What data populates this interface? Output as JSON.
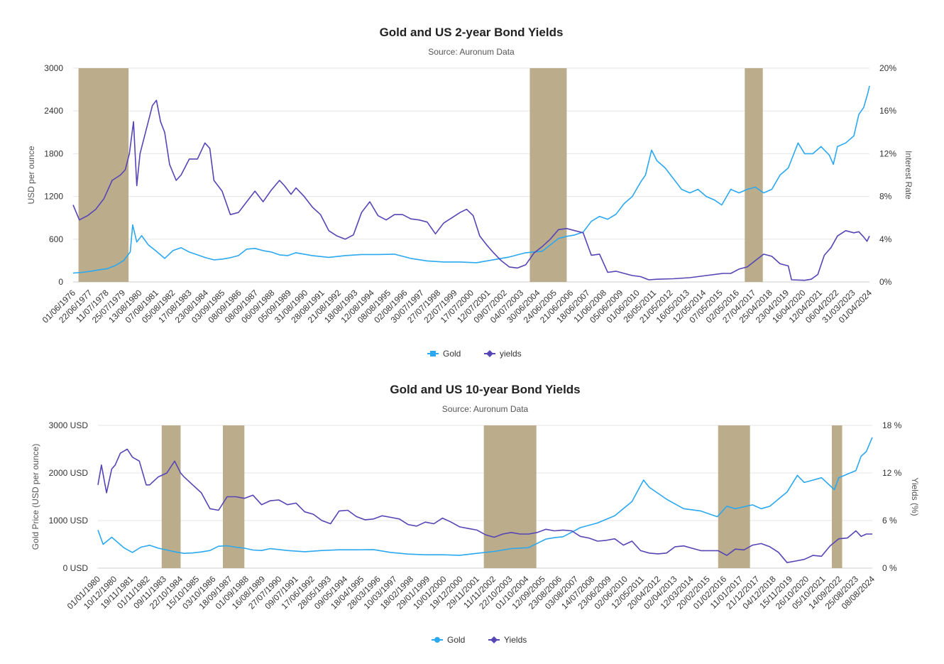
{
  "colors": {
    "gold": "#2aa8f0",
    "yields": "#5545b5",
    "band": "#bbad8c",
    "grid": "#e6e6e6"
  },
  "chart_data": [
    {
      "type": "line",
      "title": "Gold and US 2-year Bond Yields",
      "subtitle": "Source: Auronum Data",
      "ylabel": "USD per ounce",
      "y2label": "Interest Rate",
      "ylim": [
        0,
        3000
      ],
      "y2lim": [
        0,
        20
      ],
      "yticks": [
        "0",
        "600",
        "1200",
        "1800",
        "2400",
        "3000"
      ],
      "y2ticks": [
        "0%",
        "4%",
        "8%",
        "12%",
        "16%",
        "20%"
      ],
      "xrange": [
        1976.42,
        2024.95
      ],
      "xticks": [
        "01/06/1976",
        "22/06/1977",
        "11/07/1978",
        "25/07/1979",
        "13/08/1980",
        "07/08/1981",
        "05/08/1982",
        "17/08/1983",
        "23/08/1984",
        "03/09/1985",
        "08/09/1986",
        "08/09/1987",
        "06/09/1988",
        "05/09/1989",
        "31/08/1990",
        "28/08/1991",
        "21/08/1992",
        "18/08/1993",
        "12/08/1994",
        "08/08/1995",
        "02/08/1996",
        "30/07/1997",
        "27/07/1998",
        "22/07/1999",
        "17/07/2000",
        "12/07/2001",
        "09/07/2002",
        "04/07/2003",
        "30/06/2004",
        "24/06/2005",
        "21/06/2006",
        "18/06/2007",
        "11/06/2008",
        "05/06/2009",
        "01/06/2010",
        "26/05/2011",
        "21/05/2012",
        "16/05/2013",
        "12/05/2014",
        "07/05/2015",
        "02/05/2016",
        "27/04/2017",
        "25/04/2018",
        "23/04/2019",
        "16/04/2020",
        "12/04/2021",
        "06/04/2022",
        "31/03/2023",
        "01/04/2024"
      ],
      "bands": [
        [
          1976.75,
          1979.8
        ],
        [
          2004.25,
          2006.5
        ],
        [
          2017.35,
          2018.45
        ]
      ],
      "legend": [
        "Gold",
        "yields"
      ],
      "series": [
        {
          "name": "Gold",
          "axis": "left",
          "x": [
            1976.42,
            1977,
            1977.5,
            1978,
            1978.5,
            1979,
            1979.5,
            1979.9,
            1980.05,
            1980.3,
            1980.6,
            1981,
            1981.5,
            1982,
            1982.5,
            1983,
            1983.5,
            1984,
            1984.5,
            1985,
            1985.5,
            1986,
            1986.5,
            1987,
            1987.5,
            1988,
            1988.5,
            1989,
            1989.5,
            1990,
            1991,
            1992,
            1993,
            1994,
            1995,
            1996,
            1997,
            1998,
            1999,
            2000,
            2001,
            2002,
            2003,
            2004,
            2005,
            2006,
            2006.5,
            2007,
            2007.5,
            2008,
            2008.5,
            2009,
            2009.5,
            2010,
            2010.5,
            2011,
            2011.3,
            2011.67,
            2012,
            2012.5,
            2013,
            2013.5,
            2014,
            2014.5,
            2015,
            2015.5,
            2015.95,
            2016.5,
            2017,
            2017.5,
            2018,
            2018.5,
            2019,
            2019.5,
            2020,
            2020.6,
            2021,
            2021.5,
            2022,
            2022.5,
            2022.75,
            2023,
            2023.5,
            2024,
            2024.3,
            2024.6,
            2024.85,
            2024.95
          ],
          "values": [
            125,
            135,
            150,
            170,
            185,
            230,
            300,
            420,
            800,
            560,
            650,
            520,
            430,
            330,
            440,
            480,
            420,
            380,
            340,
            310,
            320,
            340,
            370,
            460,
            470,
            440,
            420,
            380,
            370,
            410,
            370,
            345,
            370,
            385,
            385,
            390,
            330,
            295,
            280,
            280,
            270,
            310,
            350,
            410,
            430,
            610,
            640,
            660,
            700,
            850,
            920,
            880,
            950,
            1100,
            1200,
            1400,
            1500,
            1850,
            1700,
            1600,
            1450,
            1300,
            1250,
            1300,
            1200,
            1150,
            1080,
            1300,
            1250,
            1300,
            1330,
            1250,
            1300,
            1500,
            1600,
            1950,
            1800,
            1800,
            1900,
            1780,
            1650,
            1900,
            1950,
            2050,
            2350,
            2450,
            2650,
            2750
          ]
        },
        {
          "name": "yields",
          "axis": "right",
          "x": [
            1976.42,
            1976.8,
            1977.3,
            1977.8,
            1978.3,
            1978.8,
            1979.3,
            1979.6,
            1979.85,
            1980.1,
            1980.3,
            1980.5,
            1980.75,
            1981,
            1981.25,
            1981.5,
            1981.75,
            1982,
            1982.3,
            1982.7,
            1983,
            1983.5,
            1984,
            1984.45,
            1984.75,
            1985,
            1985.5,
            1986,
            1986.5,
            1987,
            1987.5,
            1988,
            1988.5,
            1989,
            1989.3,
            1989.7,
            1990,
            1990.5,
            1991,
            1991.5,
            1992,
            1992.5,
            1993,
            1993.5,
            1994,
            1994.5,
            1995,
            1995.5,
            1996,
            1996.5,
            1997,
            1997.5,
            1998,
            1998.5,
            1999,
            1999.5,
            2000,
            2000.4,
            2000.8,
            2001.2,
            2001.6,
            2002,
            2002.5,
            2003,
            2003.5,
            2004,
            2004.5,
            2005,
            2005.5,
            2006,
            2006.5,
            2007,
            2007.5,
            2008,
            2008.5,
            2009,
            2009.5,
            2010,
            2010.5,
            2011,
            2011.5,
            2012,
            2013,
            2014,
            2015,
            2016,
            2016.5,
            2017,
            2017.5,
            2018,
            2018.5,
            2019,
            2019.5,
            2020,
            2020.2,
            2021,
            2021.4,
            2021.8,
            2022.2,
            2022.6,
            2023,
            2023.5,
            2024,
            2024.3,
            2024.6,
            2024.8,
            2024.95
          ],
          "values": [
            7.2,
            5.8,
            6.2,
            6.8,
            7.8,
            9.5,
            10,
            10.5,
            12,
            15,
            9,
            12,
            13.5,
            15,
            16.5,
            17,
            15,
            14,
            11,
            9.5,
            10,
            11.5,
            11.5,
            13,
            12.5,
            9.5,
            8.5,
            6.3,
            6.5,
            7.5,
            8.5,
            7.5,
            8.6,
            9.5,
            9,
            8.2,
            8.8,
            8,
            7,
            6.3,
            4.8,
            4.3,
            4,
            4.4,
            6.5,
            7.5,
            6.2,
            5.8,
            6.3,
            6.3,
            5.9,
            5.8,
            5.6,
            4.5,
            5.5,
            6,
            6.5,
            6.8,
            6.2,
            4.3,
            3.5,
            2.8,
            2,
            1.4,
            1.3,
            1.6,
            2.7,
            3.3,
            4,
            4.9,
            5,
            4.8,
            4.6,
            2.5,
            2.6,
            0.9,
            1,
            0.8,
            0.6,
            0.5,
            0.2,
            0.25,
            0.3,
            0.4,
            0.6,
            0.8,
            0.8,
            1.2,
            1.4,
            2,
            2.6,
            2.4,
            1.7,
            1.5,
            0.2,
            0.15,
            0.25,
            0.7,
            2.5,
            3.2,
            4.3,
            4.8,
            4.6,
            4.7,
            4.2,
            3.8,
            4.3
          ]
        }
      ]
    },
    {
      "type": "line",
      "title": "Gold and US 10-year Bond Yields",
      "subtitle": "Source: Auronum Data",
      "ylabel": "Gold Price (USD per ounce)",
      "y2label": "Yields (%)",
      "ylim": [
        0,
        3000
      ],
      "y2lim": [
        0,
        18
      ],
      "yticks": [
        "0 USD",
        "1000 USD",
        "2000 USD",
        "3000 USD"
      ],
      "y2ticks": [
        "0 %",
        "6 %",
        "12 %",
        "18 %"
      ],
      "xrange": [
        1980.0,
        2024.95
      ],
      "xticks": [
        "01/01/1980",
        "10/12/1980",
        "19/11/1981",
        "01/11/1982",
        "09/11/1983",
        "22/10/1984",
        "15/10/1985",
        "03/10/1986",
        "18/09/1987",
        "01/09/1988",
        "16/08/1989",
        "27/07/1990",
        "09/07/1991",
        "17/06/1992",
        "28/05/1993",
        "09/05/1994",
        "18/04/1995",
        "28/03/1996",
        "10/03/1997",
        "18/02/1998",
        "29/01/1999",
        "10/01/2000",
        "19/12/2000",
        "29/11/2001",
        "11/11/2002",
        "22/10/2003",
        "01/10/2004",
        "12/09/2005",
        "23/08/2006",
        "03/08/2007",
        "14/07/2008",
        "23/06/2009",
        "02/06/2010",
        "12/05/2011",
        "20/04/2012",
        "02/04/2013",
        "12/03/2014",
        "20/02/2015",
        "01/02/2016",
        "11/01/2017",
        "21/12/2017",
        "04/12/2018",
        "15/11/2019",
        "26/10/2020",
        "05/10/2021",
        "14/09/2022",
        "25/08/2023",
        "08/08/2024"
      ],
      "bands": [
        [
          1983.7,
          1984.8
        ],
        [
          1987.25,
          1988.5
        ],
        [
          2002.4,
          2005.45
        ],
        [
          2016.0,
          2017.85
        ],
        [
          2022.6,
          2023.2
        ]
      ],
      "legend": [
        "Gold",
        "Yields"
      ],
      "series": [
        {
          "name": "Gold",
          "axis": "left",
          "x": [
            1980,
            1980.3,
            1980.8,
            1981.5,
            1982,
            1982.5,
            1983,
            1983.5,
            1984,
            1984.5,
            1985,
            1985.5,
            1986,
            1986.5,
            1987,
            1987.5,
            1988,
            1988.5,
            1989,
            1989.5,
            1990,
            1991,
            1992,
            1993,
            1994,
            1995,
            1996,
            1997,
            1998,
            1999,
            2000,
            2001,
            2002,
            2003,
            2004,
            2005,
            2006,
            2006.5,
            2007,
            2008,
            2009,
            2010,
            2011,
            2011.67,
            2012,
            2013,
            2014,
            2015,
            2015.95,
            2016.5,
            2017,
            2018,
            2018.5,
            2019,
            2020,
            2020.6,
            2021,
            2022,
            2022.75,
            2023,
            2024,
            2024.3,
            2024.6,
            2024.95
          ],
          "values": [
            800,
            500,
            650,
            430,
            330,
            440,
            480,
            420,
            380,
            340,
            310,
            320,
            340,
            370,
            460,
            470,
            440,
            420,
            380,
            370,
            410,
            370,
            345,
            370,
            385,
            385,
            390,
            330,
            295,
            280,
            280,
            270,
            310,
            350,
            410,
            430,
            610,
            640,
            660,
            850,
            950,
            1100,
            1400,
            1850,
            1700,
            1450,
            1250,
            1200,
            1080,
            1300,
            1250,
            1330,
            1250,
            1300,
            1600,
            1950,
            1800,
            1900,
            1650,
            1900,
            2050,
            2350,
            2450,
            2750
          ]
        },
        {
          "name": "Yields",
          "axis": "right",
          "x": [
            1980,
            1980.2,
            1980.5,
            1980.8,
            1981,
            1981.3,
            1981.7,
            1982,
            1982.4,
            1982.8,
            1983,
            1983.5,
            1984,
            1984.45,
            1984.8,
            1985,
            1985.5,
            1986,
            1986.5,
            1987,
            1987.5,
            1988,
            1988.5,
            1989,
            1989.5,
            1990,
            1990.5,
            1991,
            1991.5,
            1992,
            1992.5,
            1993,
            1993.5,
            1994,
            1994.5,
            1995,
            1995.5,
            1996,
            1996.5,
            1997,
            1997.5,
            1998,
            1998.5,
            1999,
            1999.5,
            2000,
            2000.5,
            2001,
            2001.5,
            2002,
            2002.5,
            2003,
            2003.5,
            2004,
            2004.5,
            2005,
            2005.5,
            2006,
            2006.5,
            2007,
            2007.5,
            2008,
            2008.5,
            2009,
            2009.5,
            2010,
            2010.5,
            2011,
            2011.5,
            2012,
            2012.5,
            2013,
            2013.5,
            2014,
            2014.5,
            2015,
            2015.5,
            2016,
            2016.5,
            2017,
            2017.5,
            2018,
            2018.5,
            2019,
            2019.5,
            2020,
            2020.5,
            2021,
            2021.5,
            2022,
            2022.5,
            2023,
            2023.5,
            2024,
            2024.3,
            2024.6,
            2024.95
          ],
          "values": [
            10.5,
            13,
            9.5,
            12.5,
            13,
            14.5,
            15,
            14,
            13.5,
            10.5,
            10.5,
            11.5,
            12,
            13.5,
            12,
            11.5,
            10.5,
            9.5,
            7.5,
            7.3,
            9,
            9,
            8.8,
            9.2,
            8,
            8.5,
            8.6,
            8,
            8.2,
            7.1,
            6.8,
            6,
            5.6,
            7.2,
            7.3,
            6.5,
            6.1,
            6.2,
            6.6,
            6.4,
            6.2,
            5.5,
            5.3,
            5.8,
            5.6,
            6.3,
            5.8,
            5.2,
            5,
            4.8,
            4.2,
            3.9,
            4.3,
            4.5,
            4.3,
            4.3,
            4.5,
            4.9,
            4.7,
            4.8,
            4.7,
            4,
            3.8,
            3.4,
            3.5,
            3.7,
            2.9,
            3.4,
            2.2,
            1.9,
            1.8,
            1.9,
            2.7,
            2.8,
            2.5,
            2.2,
            2.2,
            2.2,
            1.6,
            2.4,
            2.3,
            2.9,
            3.1,
            2.7,
            2,
            0.7,
            0.9,
            1.1,
            1.6,
            1.5,
            2.8,
            3.7,
            3.8,
            4.7,
            4,
            4.3,
            4.3
          ]
        }
      ]
    }
  ]
}
